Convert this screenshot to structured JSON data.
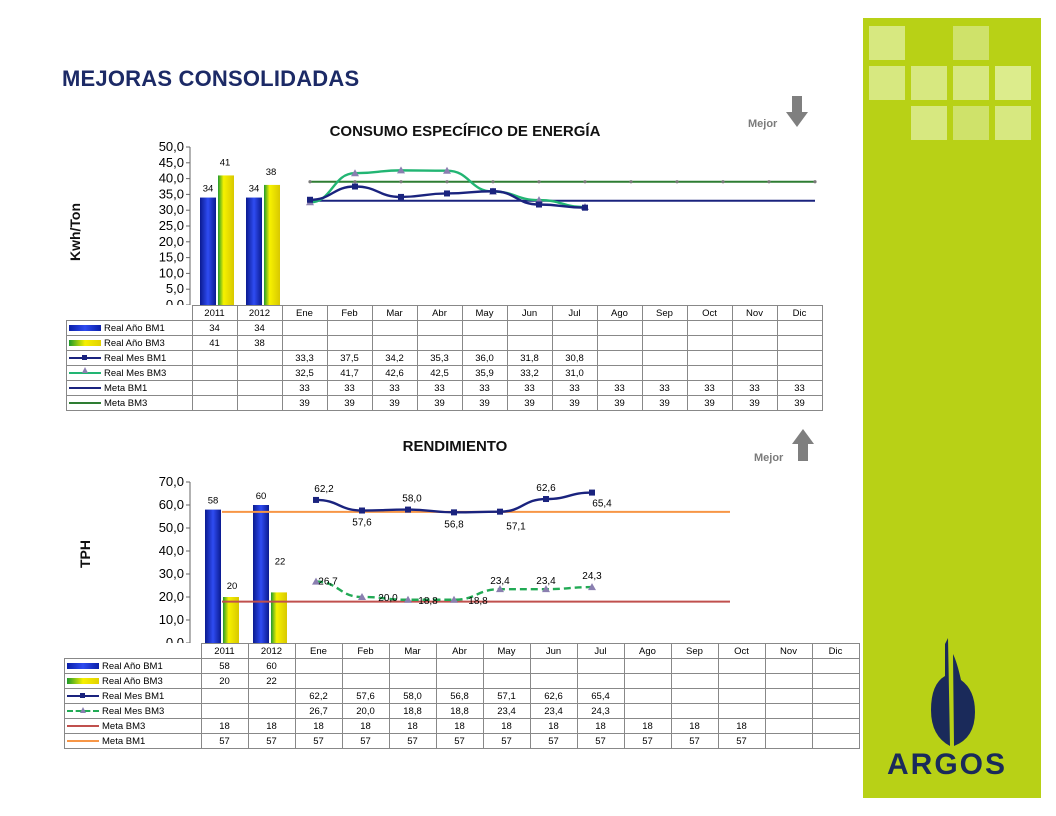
{
  "slide_title": "MEJORAS CONSOLIDADAS",
  "brand": {
    "name": "ARGOS",
    "sidebar_color": "#b8d116",
    "logo_color": "#1a2a5a"
  },
  "chart_data": [
    {
      "type": "bar+line",
      "title": "CONSUMO ESPECÍFICO DE ENERGÍA",
      "ylabel": "Kwh/Ton",
      "ylim": [
        0,
        50
      ],
      "ytick_step": 5,
      "yticks": [
        "0,0",
        "5,0",
        "10,0",
        "15,0",
        "20,0",
        "25,0",
        "30,0",
        "35,0",
        "40,0",
        "45,0",
        "50,0"
      ],
      "indicator": {
        "label": "Mejor",
        "direction": "down"
      },
      "categories": [
        "2011",
        "2012",
        "Ene",
        "Feb",
        "Mar",
        "Abr",
        "May",
        "Jun",
        "Jul",
        "Ago",
        "Sep",
        "Oct",
        "Nov",
        "Dic"
      ],
      "bar_labels": {
        "bm1": [
          "34",
          "34"
        ],
        "bm3": [
          "41",
          "38"
        ]
      },
      "series": [
        {
          "name": "Real Año BM1",
          "kind": "bar",
          "color": "#1428c8",
          "values": [
            34,
            34,
            null,
            null,
            null,
            null,
            null,
            null,
            null,
            null,
            null,
            null,
            null,
            null
          ]
        },
        {
          "name": "Real Año BM3",
          "kind": "bar",
          "color": "#e6e600",
          "values": [
            41,
            38,
            null,
            null,
            null,
            null,
            null,
            null,
            null,
            null,
            null,
            null,
            null,
            null
          ]
        },
        {
          "name": "Real Mes BM1",
          "kind": "line",
          "color": "#1a237e",
          "marker": "square",
          "values": [
            null,
            null,
            33.3,
            37.5,
            34.2,
            35.3,
            36.0,
            31.8,
            30.8,
            null,
            null,
            null,
            null,
            null
          ]
        },
        {
          "name": "Real Mes BM3",
          "kind": "line",
          "color": "#22b573",
          "marker": "triangle",
          "values": [
            null,
            null,
            32.5,
            41.7,
            42.6,
            42.5,
            35.9,
            33.2,
            31.0,
            null,
            null,
            null,
            null,
            null
          ]
        },
        {
          "name": "Meta BM1",
          "kind": "line",
          "color": "#1a237e",
          "values": [
            null,
            null,
            33,
            33,
            33,
            33,
            33,
            33,
            33,
            33,
            33,
            33,
            33,
            33
          ]
        },
        {
          "name": "Meta BM3",
          "kind": "line",
          "color": "#2e7d32",
          "values": [
            null,
            null,
            39,
            39,
            39,
            39,
            39,
            39,
            39,
            39,
            39,
            39,
            39,
            39
          ]
        }
      ],
      "table": [
        {
          "label": "Real Año BM1",
          "swatch": "bar-blue",
          "cells": [
            "34",
            "34",
            "",
            "",
            "",
            "",
            "",
            "",
            "",
            "",
            "",
            "",
            "",
            ""
          ]
        },
        {
          "label": "Real Año BM3",
          "swatch": "bar-yellow",
          "cells": [
            "41",
            "38",
            "",
            "",
            "",
            "",
            "",
            "",
            "",
            "",
            "",
            "",
            "",
            ""
          ]
        },
        {
          "label": "Real Mes BM1",
          "swatch": "line-sq",
          "cells": [
            "",
            "",
            "33,3",
            "37,5",
            "34,2",
            "35,3",
            "36,0",
            "31,8",
            "30,8",
            "",
            "",
            "",
            "",
            ""
          ]
        },
        {
          "label": "Real Mes BM3",
          "swatch": "line-tri",
          "cells": [
            "",
            "",
            "32,5",
            "41,7",
            "42,6",
            "42,5",
            "35,9",
            "33,2",
            "31,0",
            "",
            "",
            "",
            "",
            ""
          ]
        },
        {
          "label": "Meta BM1",
          "swatch": "line-navy",
          "cells": [
            "",
            "",
            "33",
            "33",
            "33",
            "33",
            "33",
            "33",
            "33",
            "33",
            "33",
            "33",
            "33",
            "33"
          ]
        },
        {
          "label": "Meta BM3",
          "swatch": "line-green",
          "cells": [
            "",
            "",
            "39",
            "39",
            "39",
            "39",
            "39",
            "39",
            "39",
            "39",
            "39",
            "39",
            "39",
            "39"
          ]
        }
      ]
    },
    {
      "type": "bar+line",
      "title": "RENDIMIENTO",
      "ylabel": "TPH",
      "ylim": [
        0,
        70
      ],
      "ytick_step": 10,
      "yticks": [
        "0,0",
        "10,0",
        "20,0",
        "30,0",
        "40,0",
        "50,0",
        "60,0",
        "70,0"
      ],
      "indicator": {
        "label": "Mejor",
        "direction": "up"
      },
      "categories": [
        "2011",
        "2012",
        "Ene",
        "Feb",
        "Mar",
        "Abr",
        "May",
        "Jun",
        "Jul",
        "Ago",
        "Sep",
        "Oct",
        "Nov",
        "Dic"
      ],
      "bar_labels": {
        "bm1": [
          "58",
          "60"
        ],
        "bm3": [
          "20",
          "22"
        ]
      },
      "line_labels": {
        "bm1": [
          "62,2",
          "57,6",
          "58,0",
          "56,8",
          "57,1",
          "62,6",
          "65,4"
        ],
        "bm3": [
          "26,7",
          "20,0",
          "18,8",
          "18,8",
          "23,4",
          "23,4",
          "24,3"
        ]
      },
      "series": [
        {
          "name": "Real Año BM1",
          "kind": "bar",
          "color": "#1428c8",
          "values": [
            58,
            60,
            null,
            null,
            null,
            null,
            null,
            null,
            null,
            null,
            null,
            null,
            null,
            null
          ]
        },
        {
          "name": "Real Año BM3",
          "kind": "bar",
          "color": "#e6e600",
          "values": [
            20,
            22,
            null,
            null,
            null,
            null,
            null,
            null,
            null,
            null,
            null,
            null,
            null,
            null
          ]
        },
        {
          "name": "Real Mes BM1",
          "kind": "line",
          "color": "#1a237e",
          "marker": "square",
          "values": [
            null,
            null,
            62.2,
            57.6,
            58.0,
            56.8,
            57.1,
            62.6,
            65.4,
            null,
            null,
            null,
            null,
            null
          ]
        },
        {
          "name": "Real Mes BM3",
          "kind": "line",
          "color": "#22aa55",
          "marker": "triangle",
          "dashed": true,
          "values": [
            null,
            null,
            26.7,
            20.0,
            18.8,
            18.8,
            23.4,
            23.4,
            24.3,
            null,
            null,
            null,
            null,
            null
          ]
        },
        {
          "name": "Meta BM3",
          "kind": "line",
          "color": "#c0504d",
          "values": [
            18,
            18,
            18,
            18,
            18,
            18,
            18,
            18,
            18,
            18,
            18,
            18,
            null,
            null
          ]
        },
        {
          "name": "Meta BM1",
          "kind": "line",
          "color": "#f79646",
          "values": [
            57,
            57,
            57,
            57,
            57,
            57,
            57,
            57,
            57,
            57,
            57,
            57,
            null,
            null
          ]
        }
      ],
      "table": [
        {
          "label": "Real Año BM1",
          "swatch": "bar-blue",
          "cells": [
            "58",
            "60",
            "",
            "",
            "",
            "",
            "",
            "",
            "",
            "",
            "",
            "",
            "",
            ""
          ]
        },
        {
          "label": "Real Año BM3",
          "swatch": "bar-yellow",
          "cells": [
            "20",
            "22",
            "",
            "",
            "",
            "",
            "",
            "",
            "",
            "",
            "",
            "",
            "",
            ""
          ]
        },
        {
          "label": "Real Mes BM1",
          "swatch": "line-sq",
          "cells": [
            "",
            "",
            "62,2",
            "57,6",
            "58,0",
            "56,8",
            "57,1",
            "62,6",
            "65,4",
            "",
            "",
            "",
            "",
            ""
          ]
        },
        {
          "label": "Real Mes BM3",
          "swatch": "dash-tri",
          "cells": [
            "",
            "",
            "26,7",
            "20,0",
            "18,8",
            "18,8",
            "23,4",
            "23,4",
            "24,3",
            "",
            "",
            "",
            "",
            ""
          ]
        },
        {
          "label": "Meta BM3",
          "swatch": "line-red",
          "cells": [
            "18",
            "18",
            "18",
            "18",
            "18",
            "18",
            "18",
            "18",
            "18",
            "18",
            "18",
            "18",
            "",
            ""
          ]
        },
        {
          "label": "Meta BM1",
          "swatch": "line-orange",
          "cells": [
            "57",
            "57",
            "57",
            "57",
            "57",
            "57",
            "57",
            "57",
            "57",
            "57",
            "57",
            "57",
            "",
            ""
          ]
        }
      ]
    }
  ]
}
